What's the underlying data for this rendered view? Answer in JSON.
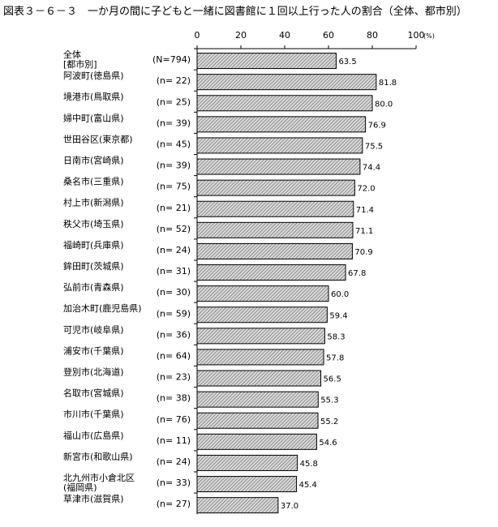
{
  "chart_data": {
    "type": "bar",
    "orientation": "horizontal",
    "title": "図表３－６－３　一か月の間に子どもと一緒に図書館に１回以上行った人の割合（全体、都市別）",
    "xlim": [
      0,
      100
    ],
    "xticks": [
      0,
      20,
      40,
      60,
      80,
      100
    ],
    "x_unit": "(%)",
    "categories": [
      "全体\n[都市別]",
      "阿波町(徳島県)",
      "境港市(鳥取県)",
      "婦中町(富山県)",
      "世田谷区(東京都)",
      "日南市(宮崎県)",
      "桑名市(三重県)",
      "村上市(新潟県)",
      "秩父市(埼玉県)",
      "福崎町(兵庫県)",
      "鉾田町(茨城県)",
      "弘前市(青森県)",
      "加治木町(鹿児島県)",
      "可児市(岐阜県)",
      "浦安市(千葉県)",
      "登別市(北海道)",
      "名取市(宮城県)",
      "市川市(千葉県)",
      "福山市(広島県)",
      "新宮市(和歌山県)",
      "北九州市小倉北区\n(福岡県)",
      "草津市(滋賀県)"
    ],
    "n_labels": [
      "(N=794)",
      "(n= 22)",
      "(n= 25)",
      "(n= 39)",
      "(n= 45)",
      "(n= 39)",
      "(n= 75)",
      "(n= 21)",
      "(n= 52)",
      "(n= 24)",
      "(n= 31)",
      "(n= 30)",
      "(n= 59)",
      "(n= 36)",
      "(n= 64)",
      "(n= 23)",
      "(n= 38)",
      "(n= 76)",
      "(n= 11)",
      "(n= 24)",
      "(n= 33)",
      "(n= 27)"
    ],
    "values": [
      63.5,
      81.8,
      80.0,
      76.9,
      75.5,
      74.4,
      72.0,
      71.4,
      71.1,
      70.9,
      67.8,
      60.0,
      59.4,
      58.3,
      57.8,
      56.5,
      55.3,
      55.2,
      54.6,
      45.8,
      45.4,
      37.0
    ],
    "value_labels": [
      "63.5",
      "81.8",
      "80.0",
      "76.9",
      "75.5",
      "74.4",
      "72.0",
      "71.4",
      "71.1",
      "70.9",
      "67.8",
      "60.0",
      "59.4",
      "58.3",
      "57.8",
      "56.5",
      "55.3",
      "55.2",
      "54.6",
      "45.8",
      "45.4",
      "37.0"
    ],
    "bar_fill": "hatched-gray",
    "grid": false,
    "legend": "none"
  }
}
